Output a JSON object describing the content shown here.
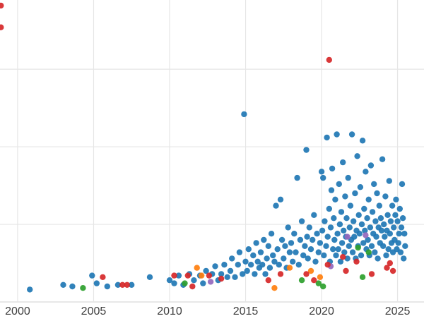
{
  "chart_data": {
    "type": "scatter",
    "title": "",
    "xlabel": "",
    "ylabel": "",
    "x_range": [
      1998.84,
      2026.74
    ],
    "y_range": [
      -5,
      97.3
    ],
    "x_ticks": [
      {
        "label": "2000",
        "value": 2000
      },
      {
        "label": "2005",
        "value": 2005
      },
      {
        "label": "2010",
        "value": 2010
      },
      {
        "label": "2015",
        "value": 2015
      },
      {
        "label": "2020",
        "value": 2020
      },
      {
        "label": "2025",
        "value": 2025
      }
    ],
    "gridlines_y": [
      0,
      25,
      50,
      75
    ],
    "grid": true,
    "legend": "none",
    "style": {
      "grid_color": "#e6e6e6",
      "baseline_color": "#d9d9d9",
      "tick_label_color": "#3d3d3d",
      "tick_font_size": 16,
      "marker_radius": 4.2,
      "marker_opacity": 0.92,
      "background": "#ffffff"
    },
    "series": [
      {
        "name": "series-blue",
        "color": "#1f77b4",
        "points": [
          [
            2000.8,
            4
          ],
          [
            2003.0,
            5.5
          ],
          [
            2003.6,
            5
          ],
          [
            2004.9,
            8.5
          ],
          [
            2005.2,
            6
          ],
          [
            2005.9,
            5
          ],
          [
            2006.6,
            5.5
          ],
          [
            2007.5,
            5.5
          ],
          [
            2008.7,
            8
          ],
          [
            2010.0,
            7
          ],
          [
            2010.3,
            6
          ],
          [
            2010.6,
            8.5
          ],
          [
            2010.9,
            5.5
          ],
          [
            2011.3,
            9
          ],
          [
            2011.6,
            7
          ],
          [
            2012.0,
            8.5
          ],
          [
            2012.2,
            6
          ],
          [
            2012.4,
            10
          ],
          [
            2012.8,
            9
          ],
          [
            2013.0,
            11.5
          ],
          [
            2013.2,
            7
          ],
          [
            2013.4,
            9
          ],
          [
            2013.6,
            12
          ],
          [
            2013.8,
            8
          ],
          [
            2014.0,
            10
          ],
          [
            2014.1,
            14
          ],
          [
            2014.3,
            8
          ],
          [
            2014.5,
            12
          ],
          [
            2014.6,
            16
          ],
          [
            2014.8,
            9
          ],
          [
            2014.9,
            60.5
          ],
          [
            2015.0,
            13
          ],
          [
            2015.1,
            10
          ],
          [
            2015.2,
            17
          ],
          [
            2015.35,
            12
          ],
          [
            2015.5,
            15
          ],
          [
            2015.6,
            9
          ],
          [
            2015.7,
            19
          ],
          [
            2015.8,
            13
          ],
          [
            2015.9,
            11
          ],
          [
            2016.0,
            16
          ],
          [
            2016.1,
            12
          ],
          [
            2016.2,
            20
          ],
          [
            2016.3,
            9
          ],
          [
            2016.4,
            14
          ],
          [
            2016.5,
            18
          ],
          [
            2016.6,
            11
          ],
          [
            2016.7,
            22
          ],
          [
            2016.8,
            15
          ],
          [
            2016.9,
            13
          ],
          [
            2017.0,
            31
          ],
          [
            2017.1,
            17
          ],
          [
            2017.2,
            12
          ],
          [
            2017.3,
            33
          ],
          [
            2017.4,
            20
          ],
          [
            2017.5,
            14
          ],
          [
            2017.6,
            18
          ],
          [
            2017.7,
            11
          ],
          [
            2017.8,
            24
          ],
          [
            2017.9,
            16
          ],
          [
            2018.0,
            19
          ],
          [
            2018.1,
            13
          ],
          [
            2018.2,
            22
          ],
          [
            2018.3,
            16
          ],
          [
            2018.4,
            40
          ],
          [
            2018.5,
            12
          ],
          [
            2018.6,
            20
          ],
          [
            2018.7,
            26
          ],
          [
            2018.8,
            15
          ],
          [
            2018.9,
            18
          ],
          [
            2019.0,
            49
          ],
          [
            2019.05,
            21
          ],
          [
            2019.1,
            14
          ],
          [
            2019.2,
            24
          ],
          [
            2019.3,
            17
          ],
          [
            2019.4,
            20
          ],
          [
            2019.5,
            28
          ],
          [
            2019.6,
            13
          ],
          [
            2019.7,
            22
          ],
          [
            2019.8,
            16
          ],
          [
            2019.9,
            19
          ],
          [
            2020.0,
            42
          ],
          [
            2020.05,
            23
          ],
          [
            2020.1,
            40
          ],
          [
            2020.15,
            15
          ],
          [
            2020.2,
            26
          ],
          [
            2020.3,
            18
          ],
          [
            2020.35,
            53
          ],
          [
            2020.4,
            21
          ],
          [
            2020.5,
            30
          ],
          [
            2020.55,
            13
          ],
          [
            2020.6,
            24
          ],
          [
            2020.65,
            36
          ],
          [
            2020.7,
            43
          ],
          [
            2020.75,
            17
          ],
          [
            2020.8,
            27
          ],
          [
            2020.85,
            20
          ],
          [
            2020.9,
            33
          ],
          [
            2020.95,
            15
          ],
          [
            2021.0,
            54
          ],
          [
            2021.05,
            22
          ],
          [
            2021.1,
            17
          ],
          [
            2021.15,
            38
          ],
          [
            2021.2,
            25
          ],
          [
            2021.25,
            13
          ],
          [
            2021.3,
            29
          ],
          [
            2021.35,
            19
          ],
          [
            2021.4,
            45
          ],
          [
            2021.45,
            23
          ],
          [
            2021.5,
            16
          ],
          [
            2021.55,
            34
          ],
          [
            2021.6,
            21
          ],
          [
            2021.65,
            27
          ],
          [
            2021.7,
            14
          ],
          [
            2021.75,
            40
          ],
          [
            2021.8,
            18
          ],
          [
            2021.85,
            24
          ],
          [
            2021.9,
            31
          ],
          [
            2021.95,
            20
          ],
          [
            2022.0,
            54
          ],
          [
            2022.05,
            16
          ],
          [
            2022.1,
            26
          ],
          [
            2022.15,
            21
          ],
          [
            2022.2,
            35
          ],
          [
            2022.25,
            14
          ],
          [
            2022.3,
            23
          ],
          [
            2022.35,
            47
          ],
          [
            2022.4,
            18
          ],
          [
            2022.45,
            28
          ],
          [
            2022.5,
            22
          ],
          [
            2022.55,
            37
          ],
          [
            2022.6,
            15
          ],
          [
            2022.65,
            25
          ],
          [
            2022.7,
            52
          ],
          [
            2022.75,
            19
          ],
          [
            2022.8,
            30
          ],
          [
            2022.85,
            23
          ],
          [
            2022.9,
            42
          ],
          [
            2022.95,
            17
          ],
          [
            2023.0,
            27
          ],
          [
            2023.05,
            20
          ],
          [
            2023.1,
            33
          ],
          [
            2023.15,
            15
          ],
          [
            2023.2,
            24
          ],
          [
            2023.25,
            44
          ],
          [
            2023.3,
            18
          ],
          [
            2023.35,
            29
          ],
          [
            2023.4,
            22
          ],
          [
            2023.45,
            38
          ],
          [
            2023.5,
            16
          ],
          [
            2023.55,
            26
          ],
          [
            2023.6,
            21
          ],
          [
            2023.65,
            35
          ],
          [
            2023.7,
            14
          ],
          [
            2023.75,
            24
          ],
          [
            2023.8,
            31
          ],
          [
            2023.85,
            19
          ],
          [
            2023.9,
            27
          ],
          [
            2023.95,
            23
          ],
          [
            2024.0,
            46
          ],
          [
            2024.05,
            18
          ],
          [
            2024.1,
            25
          ],
          [
            2024.15,
            21
          ],
          [
            2024.2,
            34
          ],
          [
            2024.25,
            15
          ],
          [
            2024.3,
            23
          ],
          [
            2024.35,
            28
          ],
          [
            2024.4,
            17
          ],
          [
            2024.45,
            39
          ],
          [
            2024.5,
            22
          ],
          [
            2024.55,
            26
          ],
          [
            2024.6,
            19
          ],
          [
            2024.65,
            31
          ],
          [
            2024.7,
            16
          ],
          [
            2024.75,
            24
          ],
          [
            2024.8,
            20
          ],
          [
            2024.85,
            28
          ],
          [
            2024.9,
            33
          ],
          [
            2024.95,
            17
          ],
          [
            2025.0,
            26
          ],
          [
            2025.05,
            19
          ],
          [
            2025.1,
            22
          ],
          [
            2025.15,
            30
          ],
          [
            2025.2,
            16
          ],
          [
            2025.25,
            24
          ],
          [
            2025.3,
            38
          ],
          [
            2025.35,
            27
          ],
          [
            2025.4,
            14
          ],
          [
            2025.45,
            22
          ],
          [
            2025.5,
            18
          ]
        ]
      },
      {
        "name": "series-green",
        "color": "#2ca02c",
        "points": [
          [
            2004.3,
            4.5
          ],
          [
            2011.0,
            6
          ],
          [
            2018.7,
            7
          ],
          [
            2019.8,
            6
          ],
          [
            2020.1,
            5
          ],
          [
            2022.4,
            17.5
          ],
          [
            2022.7,
            8
          ],
          [
            2023.1,
            16
          ]
        ]
      },
      {
        "name": "series-orange",
        "color": "#ff7f0e",
        "points": [
          [
            2011.8,
            11
          ],
          [
            2012.1,
            8.5
          ],
          [
            2016.9,
            4.5
          ],
          [
            2017.9,
            11
          ],
          [
            2019.3,
            10
          ],
          [
            2019.9,
            8
          ]
        ]
      },
      {
        "name": "series-purple",
        "color": "#9467bd",
        "points": [
          [
            2012.7,
            6.5
          ],
          [
            2020.6,
            11.5
          ],
          [
            2021.7,
            21
          ],
          [
            2022.9,
            21.5
          ]
        ]
      },
      {
        "name": "series-red",
        "color": "#d62728",
        "points": [
          [
            1998.9,
            95.5
          ],
          [
            1998.9,
            88.5
          ],
          [
            2005.6,
            8
          ],
          [
            2006.9,
            5.5
          ],
          [
            2007.2,
            5.5
          ],
          [
            2010.3,
            8.5
          ],
          [
            2011.2,
            8.5
          ],
          [
            2011.5,
            5
          ],
          [
            2012.6,
            8.5
          ],
          [
            2013.4,
            7.5
          ],
          [
            2016.5,
            7
          ],
          [
            2017.3,
            9
          ],
          [
            2019.0,
            9
          ],
          [
            2019.5,
            7
          ],
          [
            2020.4,
            12
          ],
          [
            2020.5,
            78
          ],
          [
            2021.4,
            14.5
          ],
          [
            2021.6,
            10
          ],
          [
            2022.3,
            13
          ],
          [
            2023.3,
            9
          ],
          [
            2024.3,
            11
          ],
          [
            2024.5,
            12.5
          ],
          [
            2024.7,
            10
          ]
        ]
      }
    ]
  }
}
